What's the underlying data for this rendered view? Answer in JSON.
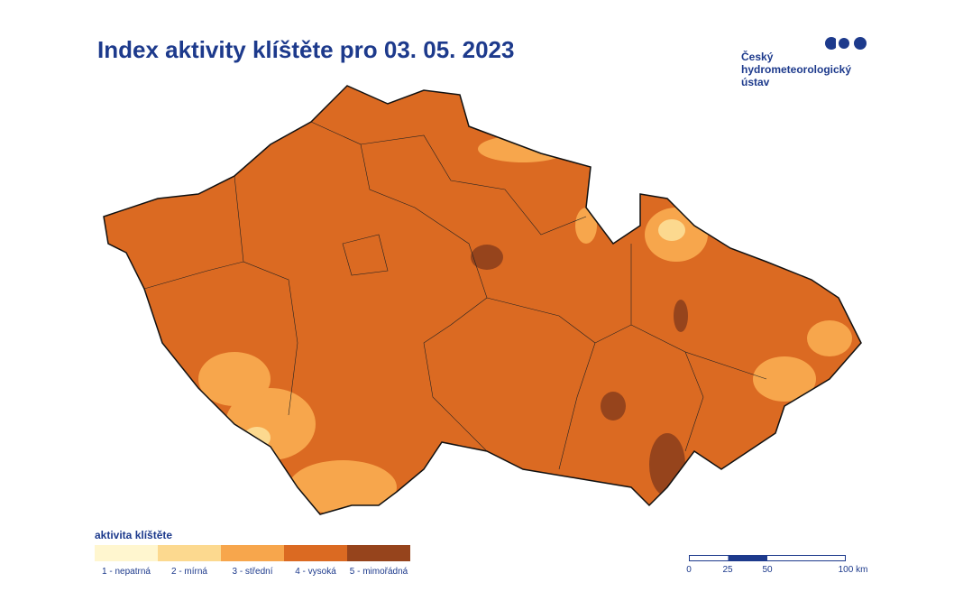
{
  "header": {
    "title": "Index aktivity klíštěte pro 03. 05. 2023"
  },
  "logo": {
    "lines": [
      "Český",
      "hydrometeorologický",
      "ústav"
    ]
  },
  "legend": {
    "title": "aktivita klíštěte",
    "items": [
      {
        "label": "1 - nepatrná",
        "color": "#fff6cf"
      },
      {
        "label": "2 - mírná",
        "color": "#fcd98f"
      },
      {
        "label": "3 - střední",
        "color": "#f7a64c"
      },
      {
        "label": "4 - vysoká",
        "color": "#db6a22"
      },
      {
        "label": "5 - mimořádná",
        "color": "#96441c"
      }
    ]
  },
  "scale": {
    "labels": [
      "0",
      "25",
      "50",
      "100 km"
    ]
  }
}
